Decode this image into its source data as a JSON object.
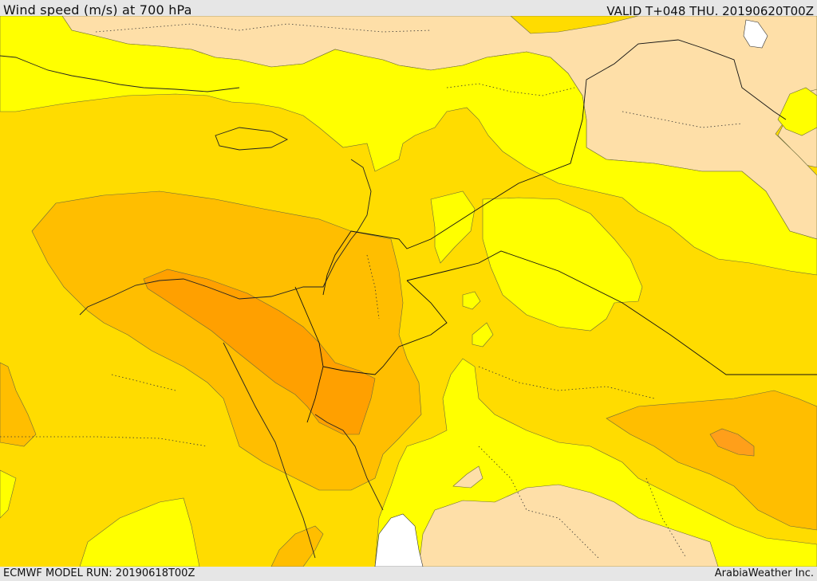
{
  "header": {
    "title": "Wind speed (m/s) at 700 hPa",
    "valid_time": "VALID T+048 THU. 20190620T00Z"
  },
  "footer": {
    "model_run": "ECMWF MODEL RUN: 20190618T00Z",
    "credit": "ArabiaWeather Inc."
  },
  "map": {
    "colors": {
      "land_below_threshold": "#fedfa8",
      "band_1": "#ffff00",
      "band_2": "#ffdc00",
      "band_3": "#ffbe00",
      "band_4": "#ffa000",
      "band_5": "#ff8c00",
      "sea_uncovered": "#ffffff"
    }
  }
}
